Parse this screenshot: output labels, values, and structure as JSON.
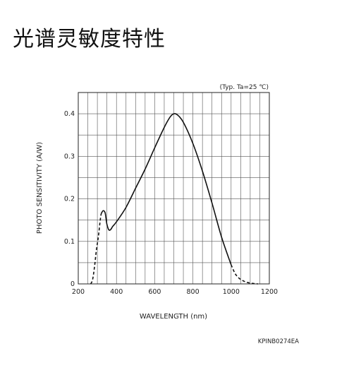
{
  "page": {
    "title": "光谱灵敏度特性"
  },
  "chart_data": {
    "type": "line",
    "title": "",
    "condition_label": "(Typ. Ta=25 ℃)",
    "xlabel": "WAVELENGTH (nm)",
    "ylabel": "PHOTO SENSITIVITY (A/W)",
    "xlim": [
      200,
      1200
    ],
    "ylim": [
      0,
      0.45
    ],
    "x_ticks": [
      200,
      400,
      600,
      800,
      1000,
      1200
    ],
    "y_ticks": [
      0,
      0.1,
      0.2,
      0.3,
      0.4
    ],
    "x_tick_labels": [
      "200",
      "400",
      "600",
      "800",
      "1000",
      "1200"
    ],
    "y_tick_labels": [
      "0",
      "0.1",
      "0.2",
      "0.3",
      "0.4"
    ],
    "grid": true,
    "figure_code": "KPINB0274EA",
    "series": [
      {
        "segments": [
          {
            "style": "dashed",
            "x": [
              265,
              275,
              285,
              295,
              305,
              315,
              320
            ],
            "y": [
              0.0,
              0.01,
              0.04,
              0.08,
              0.11,
              0.15,
              0.165
            ]
          },
          {
            "style": "solid",
            "x": [
              320,
              330,
              340,
              345,
              350,
              360,
              370,
              380,
              400,
              450,
              500,
              550,
              600,
              650,
              680,
              700,
              720,
              750,
              800,
              850,
              900,
              950,
              1000
            ],
            "y": [
              0.165,
              0.172,
              0.168,
              0.155,
              0.14,
              0.127,
              0.128,
              0.135,
              0.146,
              0.18,
              0.225,
              0.27,
              0.32,
              0.368,
              0.392,
              0.4,
              0.397,
              0.38,
              0.33,
              0.265,
              0.19,
              0.11,
              0.045
            ]
          },
          {
            "style": "dashed",
            "x": [
              1000,
              1020,
              1040,
              1060,
              1080,
              1100,
              1120,
              1140
            ],
            "y": [
              0.045,
              0.025,
              0.014,
              0.008,
              0.004,
              0.002,
              0.0008,
              0.0
            ]
          }
        ]
      }
    ]
  }
}
